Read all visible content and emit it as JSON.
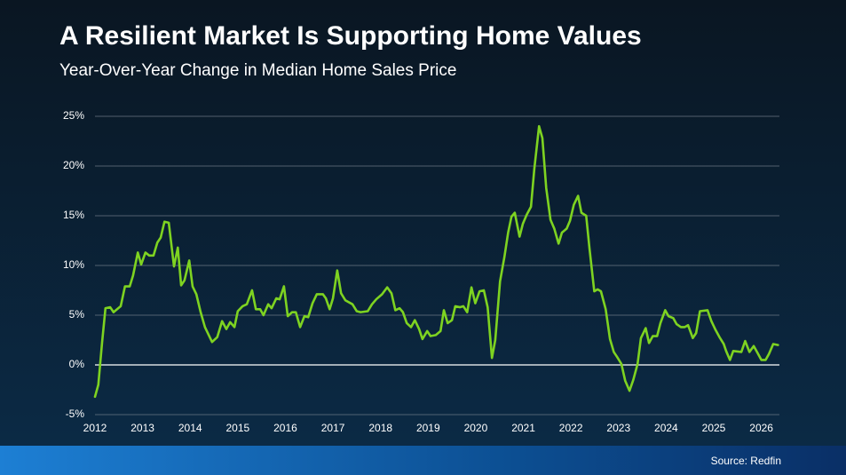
{
  "chart_data": {
    "type": "line",
    "title": "A Resilient Market Is Supporting Home Values",
    "subtitle": "Year-Over-Year Change in Median Home Sales Price",
    "source": "Source: Redfin",
    "color": "#7ed321",
    "grid": true,
    "xlim": [
      2012,
      2026.38
    ],
    "xticks": [
      2012,
      2013,
      2014,
      2015,
      2016,
      2017,
      2018,
      2019,
      2020,
      2021,
      2022,
      2023,
      2024,
      2025,
      2026
    ],
    "ylim": [
      -5,
      25
    ],
    "yticks": [
      {
        "value": -5,
        "label": "-5%"
      },
      {
        "value": 0,
        "label": "0%"
      },
      {
        "value": 5,
        "label": "5%"
      },
      {
        "value": 10,
        "label": "10%"
      },
      {
        "value": 15,
        "label": "15%"
      },
      {
        "value": 20,
        "label": "20%"
      },
      {
        "value": 25,
        "label": "25%"
      }
    ],
    "x": [
      2012.0,
      2012.07,
      2012.15,
      2012.22,
      2012.32,
      2012.39,
      2012.54,
      2012.63,
      2012.73,
      2012.8,
      2012.9,
      2012.97,
      2013.06,
      2013.14,
      2013.23,
      2013.31,
      2013.38,
      2013.46,
      2013.55,
      2013.66,
      2013.74,
      2013.81,
      2013.88,
      2013.98,
      2014.05,
      2014.13,
      2014.22,
      2014.31,
      2014.46,
      2014.57,
      2014.67,
      2014.76,
      2014.84,
      2014.93,
      2015.0,
      2015.1,
      2015.19,
      2015.3,
      2015.38,
      2015.47,
      2015.54,
      2015.64,
      2015.71,
      2015.81,
      2015.88,
      2015.97,
      2016.05,
      2016.14,
      2016.22,
      2016.31,
      2016.4,
      2016.48,
      2016.57,
      2016.66,
      2016.79,
      2016.85,
      2016.93,
      2017.0,
      2017.09,
      2017.17,
      2017.26,
      2017.41,
      2017.5,
      2017.58,
      2017.73,
      2017.82,
      2017.91,
      2018.03,
      2018.14,
      2018.23,
      2018.31,
      2018.4,
      2018.47,
      2018.55,
      2018.64,
      2018.72,
      2018.81,
      2018.88,
      2018.98,
      2019.05,
      2019.16,
      2019.26,
      2019.33,
      2019.41,
      2019.5,
      2019.57,
      2019.67,
      2019.74,
      2019.82,
      2019.91,
      2019.99,
      2020.08,
      2020.17,
      2020.25,
      2020.34,
      2020.41,
      2020.51,
      2020.6,
      2020.68,
      2020.75,
      2020.82,
      2020.92,
      2020.99,
      2021.07,
      2021.16,
      2021.23,
      2021.33,
      2021.4,
      2021.48,
      2021.57,
      2021.65,
      2021.74,
      2021.81,
      2021.91,
      2021.98,
      2022.06,
      2022.15,
      2022.22,
      2022.32,
      2022.39,
      2022.49,
      2022.56,
      2022.63,
      2022.73,
      2022.82,
      2022.9,
      2022.97,
      2023.06,
      2023.14,
      2023.23,
      2023.31,
      2023.4,
      2023.47,
      2023.57,
      2023.64,
      2023.72,
      2023.81,
      2023.88,
      2023.98,
      2024.05,
      2024.15,
      2024.22,
      2024.31,
      2024.39,
      2024.46,
      2024.56,
      2024.63,
      2024.71,
      2024.87,
      2024.95,
      2025.04,
      2025.12,
      2025.21,
      2025.26,
      2025.34,
      2025.41,
      2025.58,
      2025.66,
      2025.75,
      2025.84,
      2025.92,
      2026.0,
      2026.09,
      2026.16,
      2026.25,
      2026.35
    ],
    "values": [
      -3.2,
      -2.0,
      2.3,
      5.7,
      5.8,
      5.3,
      5.9,
      7.9,
      7.9,
      9.0,
      11.3,
      10.1,
      11.3,
      11.0,
      11.0,
      12.3,
      12.8,
      14.4,
      14.3,
      9.9,
      11.8,
      8.0,
      8.5,
      10.5,
      7.9,
      7.1,
      5.3,
      3.8,
      2.3,
      2.8,
      4.4,
      3.6,
      4.3,
      3.8,
      5.4,
      5.9,
      6.1,
      7.5,
      5.6,
      5.6,
      5.0,
      6.1,
      5.7,
      6.7,
      6.6,
      7.9,
      4.9,
      5.3,
      5.3,
      3.8,
      4.9,
      4.8,
      6.2,
      7.1,
      7.1,
      6.7,
      5.6,
      6.7,
      9.5,
      7.2,
      6.5,
      6.1,
      5.4,
      5.3,
      5.4,
      6.1,
      6.6,
      7.1,
      7.8,
      7.2,
      5.5,
      5.7,
      5.3,
      4.2,
      3.8,
      4.5,
      3.6,
      2.6,
      3.4,
      2.9,
      3.0,
      3.4,
      5.5,
      4.2,
      4.5,
      5.9,
      5.8,
      5.9,
      5.3,
      7.8,
      6.2,
      7.4,
      7.5,
      5.8,
      0.7,
      2.5,
      8.4,
      10.8,
      13.3,
      14.9,
      15.3,
      12.9,
      14.2,
      15.1,
      15.9,
      19.7,
      24.0,
      22.8,
      17.8,
      14.6,
      13.7,
      12.2,
      13.3,
      13.7,
      14.5,
      16.1,
      17.0,
      15.3,
      15.0,
      11.7,
      7.4,
      7.6,
      7.4,
      5.6,
      2.6,
      1.3,
      0.8,
      0.1,
      -1.6,
      -2.6,
      -1.5,
      0.1,
      2.7,
      3.7,
      2.2,
      2.9,
      2.9,
      4.2,
      5.5,
      4.9,
      4.7,
      4.1,
      3.8,
      3.8,
      4.0,
      2.7,
      3.2,
      5.4,
      5.5,
      4.4,
      3.5,
      2.8,
      2.1,
      1.4,
      0.5,
      1.4,
      1.3,
      2.4,
      1.3,
      1.9,
      1.2,
      0.5,
      0.5,
      1.1,
      2.1,
      2.0
    ]
  }
}
